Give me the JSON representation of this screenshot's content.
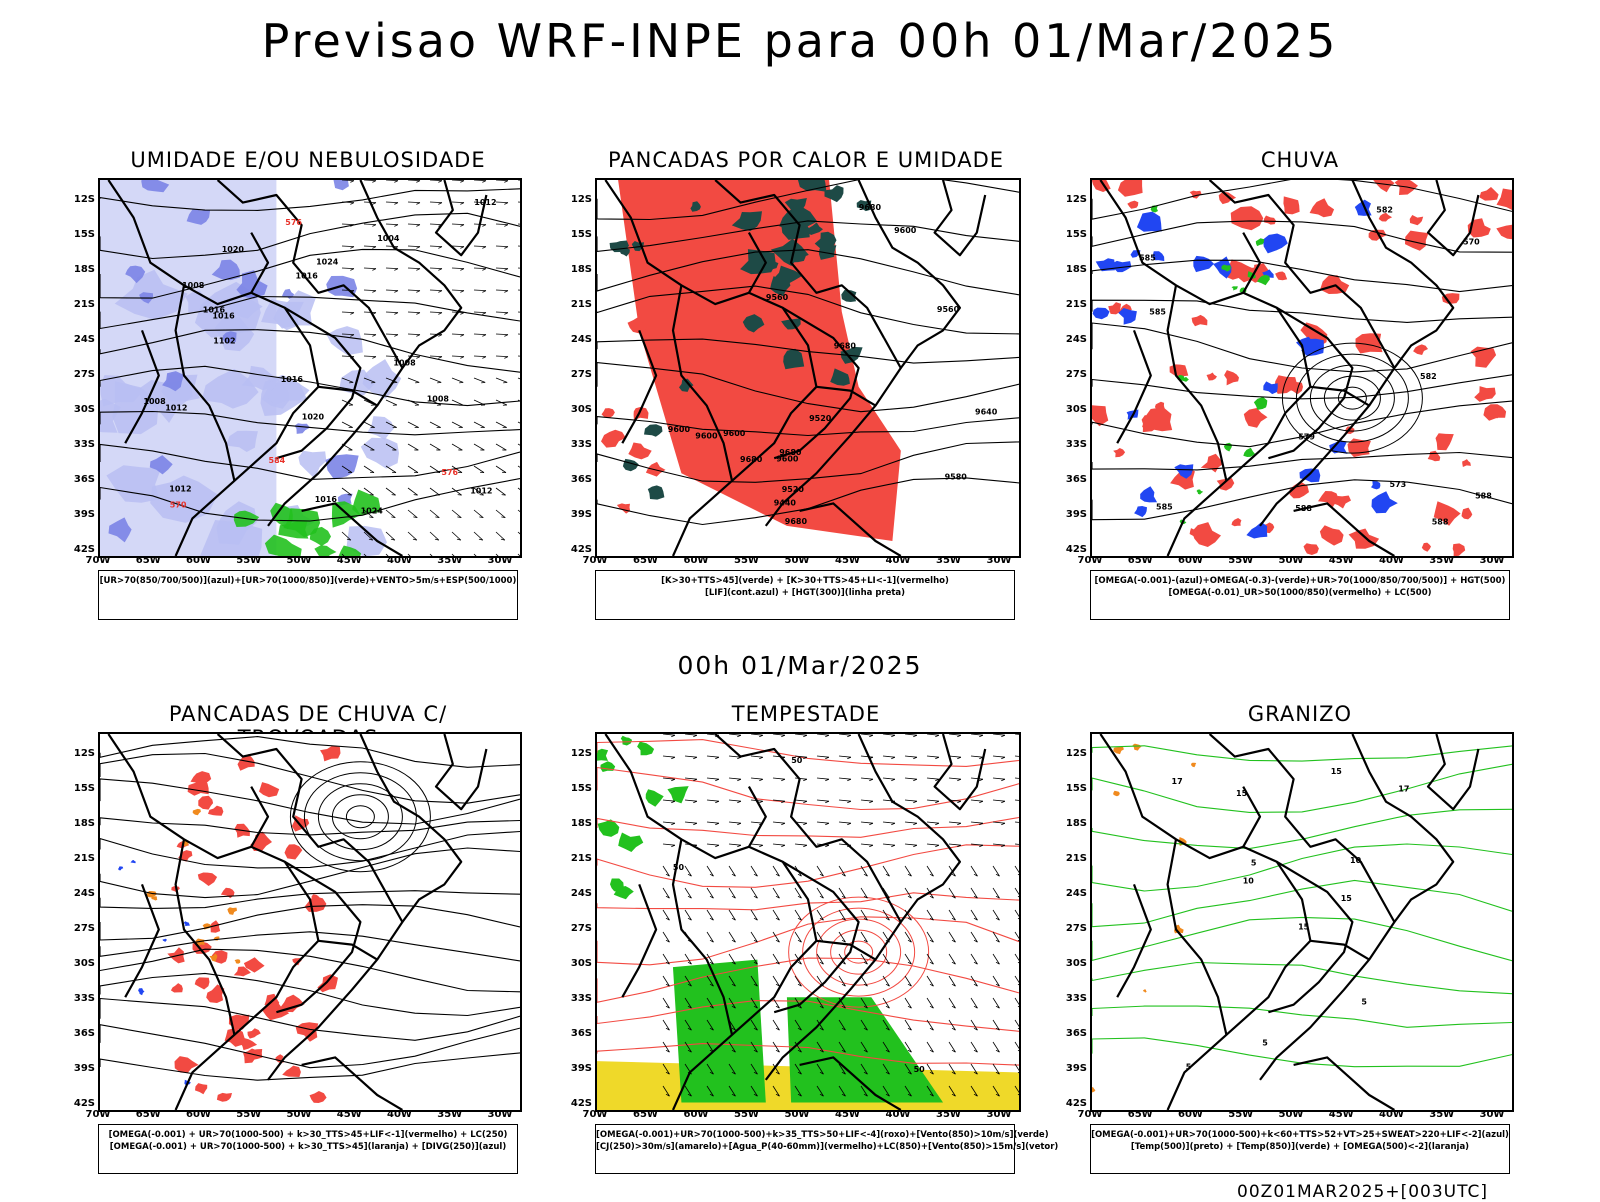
{
  "title": "Previsao WRF-INPE  para 00h 01/Mar/2025",
  "center_time": "00h 01/Mar/2025",
  "footer": "00Z01MAR2025+[003UTC]",
  "lat_ticks": [
    "12S",
    "15S",
    "18S",
    "21S",
    "24S",
    "27S",
    "30S",
    "33S",
    "36S",
    "39S",
    "42S"
  ],
  "lon_ticks": [
    "70W",
    "65W",
    "60W",
    "55W",
    "50W",
    "45W",
    "40W",
    "35W",
    "30W"
  ],
  "colors": {
    "green": "#22c11e",
    "red": "#f24a42",
    "blue": "#2146f2",
    "lightblue": "#b8bef2",
    "darkteal": "#1e4a46",
    "yellow": "#efd929",
    "orange": "#f08a1e"
  },
  "panels": [
    {
      "title": "UMIDADE E/OU NEBULOSIDADE",
      "legend": [
        "[UR>70(850/700/500)](azul)+[UR>70(1000/850)](verde)+VENTO>5m/s+ESP(500/1000)"
      ],
      "labels": [
        "1012",
        "1016",
        "1016",
        "1016",
        "1012",
        "1016",
        "1020",
        "1020",
        "1024",
        "1024",
        "1012",
        "1008",
        "1008",
        "1008",
        "1004",
        "1008",
        "1012",
        "576",
        "570",
        "576",
        "584",
        "1016",
        "1102"
      ]
    },
    {
      "title": "PANCADAS POR CALOR E UMIDADE",
      "legend": [
        "[K>30+TTS>45](verde)  +  [K>30+TTS>45+LI<-1](vermelho)",
        "[LIF](cont.azul)  +  [HGT(300)](linha preta)"
      ],
      "labels": [
        "9680",
        "9600",
        "9600",
        "9680",
        "9680",
        "9560",
        "9580",
        "9680",
        "9680",
        "9600",
        "9560",
        "9600",
        "9520",
        "9440",
        "9520",
        "9600",
        "9640"
      ]
    },
    {
      "title": "CHUVA",
      "legend": [
        "[OMEGA(-0.001)-(azul)+OMEGA(-0.3)-(verde)+UR>70(1000/850/700/500)]  +  HGT(500)",
        "[OMEGA(-0.01)_UR>50(1000/850)(vermelho)  +  LC(500)"
      ],
      "labels": [
        "585",
        "582",
        "588",
        "588",
        "585",
        "582",
        "579",
        "573",
        "570",
        "588",
        "585"
      ]
    },
    {
      "title": "PANCADAS DE CHUVA C/ TROVOADAS",
      "legend": [
        "[OMEGA(-0.001)  +  UR>70(1000-500)  +  k>30_TTS>45+LIF<-1](vermelho)  +  LC(250)",
        "[OMEGA(-0.001)  +  UR>70(1000-500)  +  k>30_TTS>45](laranja)  +  [DIVG(250)](azul)"
      ],
      "labels": []
    },
    {
      "title": "TEMPESTADE",
      "legend": [
        "[OMEGA(-0.001)+UR>70(1000-500)+k>35_TTS>50+LIF<-4](roxo)+[Vento(850)>10m/s](verde)",
        "[CJ(250)>30m/s](amarelo)+[Agua_P(40-60mm)](vermelho)+LC(850)+[Vento(850)>15m/s](vetor)"
      ],
      "labels": [
        "50",
        "50",
        "50"
      ]
    },
    {
      "title": "GRANIZO",
      "legend": [
        "[OMEGA(-0.001)+UR>70(1000-500)+k<60+TTS>52+VT>25+SWEAT>220+LIF<-2](azul)",
        "[Temp(500)](preto)  +  [Temp(850)](verde)  +  [OMEGA(500)<-2](laranja)"
      ],
      "labels": [
        "5",
        "15",
        "15",
        "10",
        "15",
        "17",
        "17",
        "5",
        "5",
        "5",
        "15",
        "10"
      ]
    }
  ]
}
